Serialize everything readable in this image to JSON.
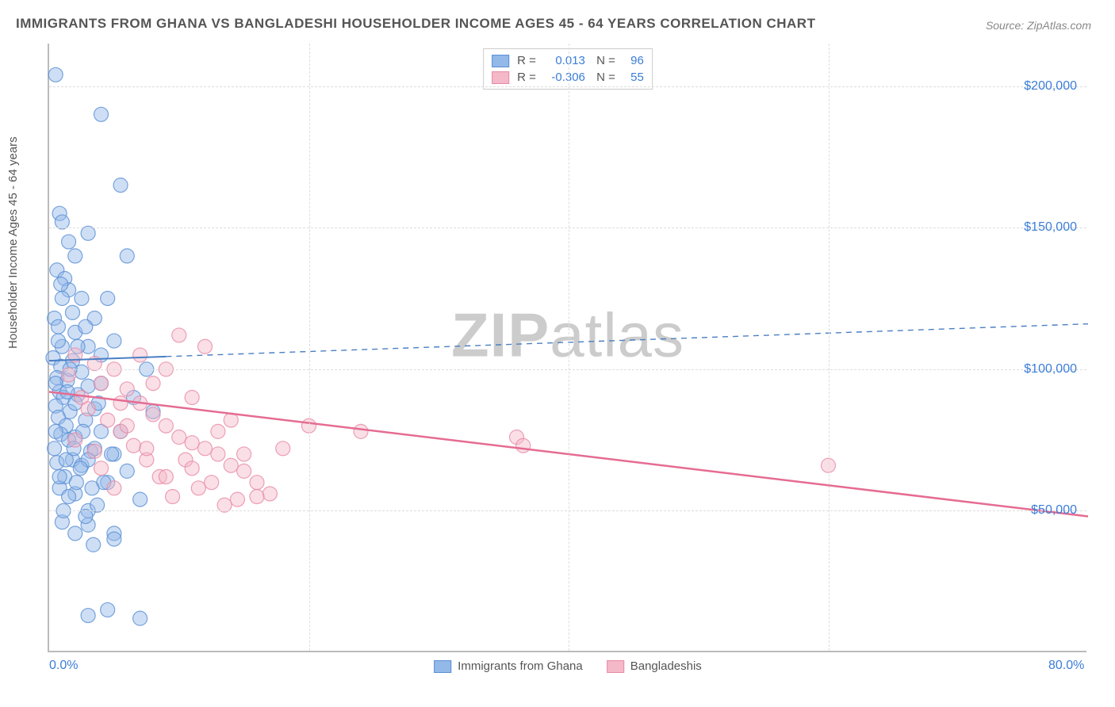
{
  "title": "IMMIGRANTS FROM GHANA VS BANGLADESHI HOUSEHOLDER INCOME AGES 45 - 64 YEARS CORRELATION CHART",
  "source": "Source: ZipAtlas.com",
  "ylabel": "Householder Income Ages 45 - 64 years",
  "watermark_bold": "ZIP",
  "watermark_rest": "atlas",
  "chart": {
    "type": "scatter",
    "xlim": [
      0,
      80
    ],
    "ylim": [
      0,
      215000
    ],
    "x_ticks": [
      0,
      80
    ],
    "x_tick_labels": [
      "0.0%",
      "80.0%"
    ],
    "x_minor_ticks": [
      20,
      40,
      60
    ],
    "y_ticks": [
      50000,
      100000,
      150000,
      200000
    ],
    "y_tick_labels": [
      "$50,000",
      "$100,000",
      "$150,000",
      "$200,000"
    ],
    "grid_color": "#dddddd",
    "axis_color": "#bbbbbb",
    "background_color": "#ffffff",
    "label_color": "#555555",
    "tick_label_color": "#3b7dd8",
    "title_fontsize": 17,
    "label_fontsize": 15,
    "tick_fontsize": 16,
    "marker_radius": 9,
    "marker_opacity": 0.45,
    "series": [
      {
        "name": "Immigrants from Ghana",
        "color": "#93b9e8",
        "stroke": "#5a8fd4",
        "R": "0.013",
        "N": "96",
        "trend": {
          "y_at_xmin": 103000,
          "y_at_xmax": 116000,
          "solid_until_x": 9,
          "color": "#4a7fc4",
          "width": 2
        },
        "points": [
          [
            0.5,
            204000
          ],
          [
            0.8,
            155000
          ],
          [
            1.0,
            152000
          ],
          [
            0.6,
            135000
          ],
          [
            1.2,
            132000
          ],
          [
            1.5,
            128000
          ],
          [
            0.4,
            118000
          ],
          [
            0.7,
            115000
          ],
          [
            2.0,
            113000
          ],
          [
            1.0,
            108000
          ],
          [
            0.3,
            104000
          ],
          [
            1.8,
            103000
          ],
          [
            0.9,
            101000
          ],
          [
            2.5,
            99000
          ],
          [
            0.6,
            97000
          ],
          [
            1.4,
            96000
          ],
          [
            3.0,
            94000
          ],
          [
            0.8,
            92000
          ],
          [
            2.2,
            91000
          ],
          [
            1.1,
            90000
          ],
          [
            0.5,
            87000
          ],
          [
            3.5,
            86000
          ],
          [
            1.6,
            85000
          ],
          [
            0.7,
            83000
          ],
          [
            2.8,
            82000
          ],
          [
            1.3,
            80000
          ],
          [
            4.0,
            78000
          ],
          [
            0.9,
            77000
          ],
          [
            2.0,
            76000
          ],
          [
            1.5,
            75000
          ],
          [
            0.4,
            72000
          ],
          [
            3.2,
            71000
          ],
          [
            5.0,
            70000
          ],
          [
            1.8,
            68000
          ],
          [
            0.6,
            67000
          ],
          [
            2.5,
            66000
          ],
          [
            6.0,
            64000
          ],
          [
            1.2,
            62000
          ],
          [
            4.5,
            60000
          ],
          [
            0.8,
            58000
          ],
          [
            2.0,
            56000
          ],
          [
            7.0,
            54000
          ],
          [
            3.0,
            50000
          ],
          [
            1.0,
            46000
          ],
          [
            5.0,
            42000
          ],
          [
            4.0,
            190000
          ],
          [
            5.5,
            165000
          ],
          [
            3.0,
            148000
          ],
          [
            6.0,
            140000
          ],
          [
            4.5,
            125000
          ],
          [
            5.0,
            110000
          ],
          [
            7.5,
            100000
          ],
          [
            4.0,
            105000
          ],
          [
            3.5,
            118000
          ],
          [
            6.5,
            90000
          ],
          [
            2.0,
            140000
          ],
          [
            8.0,
            85000
          ],
          [
            2.5,
            125000
          ],
          [
            3.0,
            108000
          ],
          [
            4.0,
            95000
          ],
          [
            1.5,
            145000
          ],
          [
            5.5,
            78000
          ],
          [
            2.8,
            115000
          ],
          [
            3.8,
            88000
          ],
          [
            4.8,
            70000
          ],
          [
            1.0,
            125000
          ],
          [
            2.2,
            108000
          ],
          [
            3.5,
            72000
          ],
          [
            0.5,
            95000
          ],
          [
            1.8,
            120000
          ],
          [
            2.0,
            88000
          ],
          [
            3.0,
            68000
          ],
          [
            4.2,
            60000
          ],
          [
            1.4,
            92000
          ],
          [
            2.6,
            78000
          ],
          [
            0.7,
            110000
          ],
          [
            1.9,
            72000
          ],
          [
            3.3,
            58000
          ],
          [
            0.9,
            130000
          ],
          [
            2.4,
            65000
          ],
          [
            1.6,
            100000
          ],
          [
            3.7,
            52000
          ],
          [
            0.5,
            78000
          ],
          [
            2.1,
            60000
          ],
          [
            1.3,
            68000
          ],
          [
            3.0,
            45000
          ],
          [
            4.5,
            15000
          ],
          [
            5.0,
            40000
          ],
          [
            3.0,
            13000
          ],
          [
            1.5,
            55000
          ],
          [
            2.8,
            48000
          ],
          [
            0.8,
            62000
          ],
          [
            2.0,
            42000
          ],
          [
            1.1,
            50000
          ],
          [
            3.4,
            38000
          ],
          [
            7.0,
            12000
          ]
        ]
      },
      {
        "name": "Bangladeshis",
        "color": "#f4b8c8",
        "stroke": "#e88aa5",
        "R": "-0.306",
        "N": "55",
        "trend": {
          "y_at_xmin": 92000,
          "y_at_xmax": 48000,
          "solid_until_x": 80,
          "color": "#e56c92",
          "width": 2.5
        },
        "points": [
          [
            2.0,
            105000
          ],
          [
            3.5,
            102000
          ],
          [
            5.0,
            100000
          ],
          [
            1.5,
            98000
          ],
          [
            4.0,
            95000
          ],
          [
            6.0,
            93000
          ],
          [
            2.5,
            90000
          ],
          [
            7.0,
            88000
          ],
          [
            3.0,
            86000
          ],
          [
            8.0,
            84000
          ],
          [
            4.5,
            82000
          ],
          [
            9.0,
            80000
          ],
          [
            5.5,
            78000
          ],
          [
            10.0,
            76000
          ],
          [
            2.0,
            75000
          ],
          [
            11.0,
            74000
          ],
          [
            6.5,
            73000
          ],
          [
            12.0,
            72000
          ],
          [
            3.5,
            71000
          ],
          [
            13.0,
            70000
          ],
          [
            7.5,
            68000
          ],
          [
            14.0,
            66000
          ],
          [
            4.0,
            65000
          ],
          [
            15.0,
            64000
          ],
          [
            8.5,
            62000
          ],
          [
            16.0,
            60000
          ],
          [
            5.0,
            58000
          ],
          [
            17.0,
            56000
          ],
          [
            9.5,
            55000
          ],
          [
            18.0,
            72000
          ],
          [
            10.0,
            112000
          ],
          [
            12.0,
            108000
          ],
          [
            14.0,
            82000
          ],
          [
            16.0,
            55000
          ],
          [
            11.0,
            90000
          ],
          [
            13.0,
            78000
          ],
          [
            15.0,
            70000
          ],
          [
            7.0,
            105000
          ],
          [
            9.0,
            62000
          ],
          [
            11.5,
            58000
          ],
          [
            8.0,
            95000
          ],
          [
            10.5,
            68000
          ],
          [
            12.5,
            60000
          ],
          [
            6.0,
            80000
          ],
          [
            14.5,
            54000
          ],
          [
            36.0,
            76000
          ],
          [
            36.5,
            73000
          ],
          [
            60.0,
            66000
          ],
          [
            24.0,
            78000
          ],
          [
            20.0,
            80000
          ],
          [
            13.5,
            52000
          ],
          [
            7.5,
            72000
          ],
          [
            9.0,
            100000
          ],
          [
            11.0,
            65000
          ],
          [
            5.5,
            88000
          ]
        ]
      }
    ]
  }
}
